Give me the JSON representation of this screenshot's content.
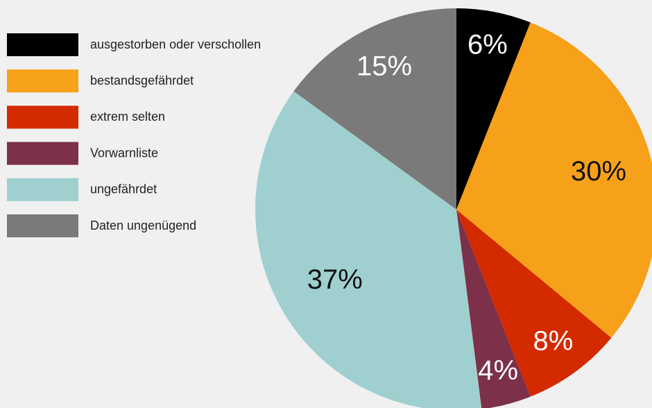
{
  "chart_data": {
    "type": "pie",
    "categories": [
      "ausgestorben oder verschollen",
      "bestandsgefährdet",
      "extrem selten",
      "Vorwarnliste",
      "ungefährdet",
      "Daten ungenügend"
    ],
    "values": [
      6,
      30,
      8,
      4,
      37,
      15
    ],
    "value_labels": [
      "6%",
      "30%",
      "8%",
      "4%",
      "37%",
      "15%"
    ],
    "colors": [
      "#000000",
      "#f7a11a",
      "#d42a00",
      "#7d3049",
      "#9fd0cf",
      "#7a7a7a"
    ],
    "legend": "left"
  }
}
